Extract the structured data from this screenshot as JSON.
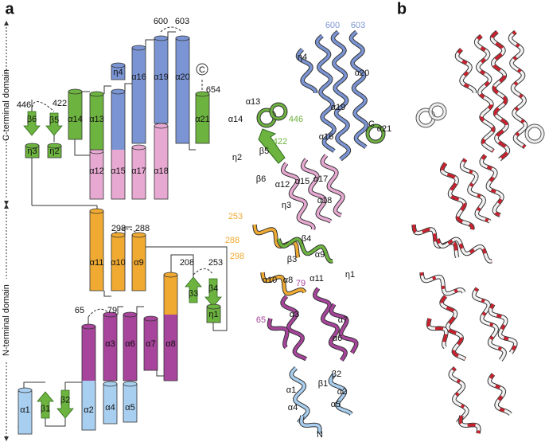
{
  "panels": [
    "a",
    "b"
  ],
  "domains": [
    "C-terminal domain",
    "N-terminal domain"
  ],
  "topology_labels": [
    "α1",
    "β1",
    "β2",
    "α2",
    "α3",
    "α4",
    "α5",
    "α6",
    "α7",
    "α8",
    "α9",
    "α10",
    "α11",
    "β3",
    "β4",
    "η1",
    "α12",
    "α13",
    "α14",
    "β5",
    "η2",
    "β6",
    "η3",
    "η4",
    "α15",
    "α16",
    "α17",
    "α19",
    "α18",
    "α20",
    "α21"
  ],
  "residue_numbers": [
    "446",
    "422",
    "600",
    "603",
    "654",
    "298",
    "288",
    "208",
    "253",
    "65",
    "79"
  ],
  "termini": [
    "N",
    "C"
  ],
  "structure_labels": [
    "η4",
    "600",
    "603",
    "α20",
    "α19",
    "α13",
    "α14",
    "446",
    "422",
    "α16",
    "C",
    "α21",
    "β5",
    "η2",
    "β6",
    "α12",
    "α15",
    "α17",
    "α18",
    "η3",
    "253",
    "288",
    "298",
    "β4",
    "β3",
    "α9",
    "α10",
    "α8",
    "α11",
    "79",
    "η1",
    "65",
    "α3",
    "α7",
    "α6",
    "β2",
    "β1",
    "α1",
    "α2",
    "α4",
    "α5",
    "N"
  ]
}
